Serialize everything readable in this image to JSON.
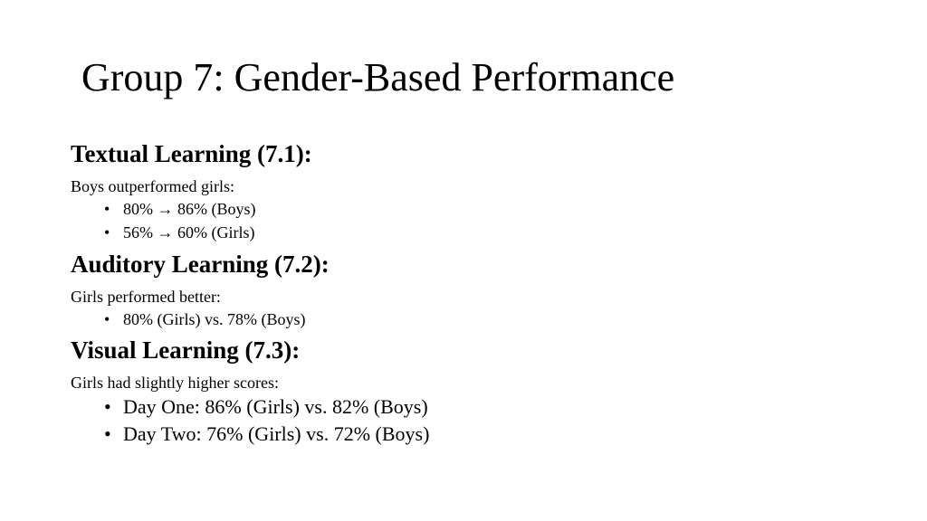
{
  "title": "Group 7: Gender-Based Performance",
  "sections": [
    {
      "heading": "Textual Learning (7.1):",
      "intro": "Boys outperformed girls:",
      "bullets": [
        "80% → 86% (Boys)",
        "56% → 60% (Girls)"
      ]
    },
    {
      "heading": "Auditory Learning (7.2):",
      "intro": "Girls performed better:",
      "bullets": [
        "80% (Girls) vs. 78% (Boys)"
      ]
    },
    {
      "heading": "Visual Learning (7.3):",
      "intro": "Girls had slightly higher scores:",
      "bullets": [
        "Day One: 86% (Girls) vs. 82% (Boys)",
        "Day Two: 76% (Girls) vs. 72% (Boys)"
      ]
    }
  ],
  "bullet_glyph": "•"
}
